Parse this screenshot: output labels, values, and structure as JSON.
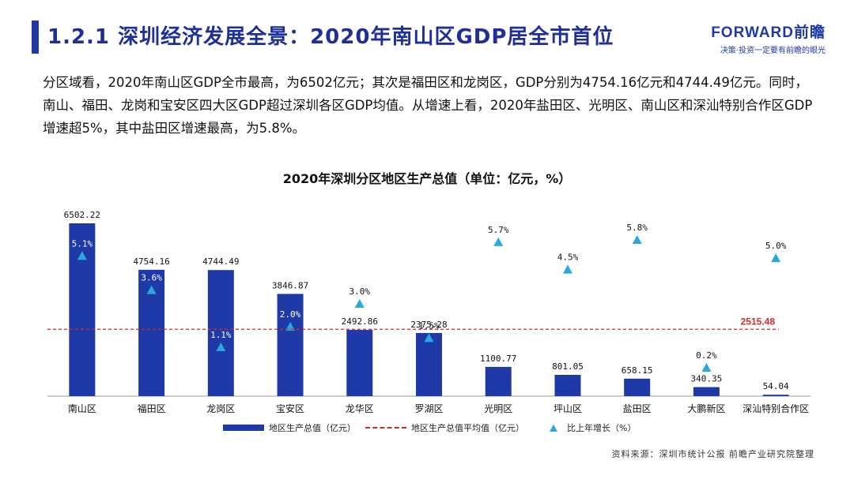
{
  "header": {
    "title": "1.2.1 深圳经济发展全景：2020年南山区GDP居全市首位",
    "logo_main": "FORWARD前瞻",
    "logo_sub": "决策·投资一定要有前瞻的眼光"
  },
  "paragraph": "分区域看，2020年南山区GDP全市最高，为6502亿元；其次是福田区和龙岗区，GDP分别为4754.16亿元和4744.49亿元。同时，南山、福田、龙岗和宝安区四大区GDP超过深圳各区GDP均值。从增速上看，2020年盐田区、光明区、南山区和深汕特别合作区GDP增速超5%，其中盐田区增速最高，为5.8%。",
  "chart_data": {
    "type": "bar",
    "title": "2020年深圳分区地区生产总值（单位：亿元，%）",
    "categories": [
      "南山区",
      "福田区",
      "龙岗区",
      "宝安区",
      "龙华区",
      "罗湖区",
      "光明区",
      "坪山区",
      "盐田区",
      "大鹏新区",
      "深汕特别合作区"
    ],
    "series": [
      {
        "name": "地区生产总值（亿元）",
        "type": "bar",
        "color": "#1f3aa6",
        "values": [
          6502.22,
          4754.16,
          4744.49,
          3846.87,
          2492.86,
          2375.28,
          1100.77,
          801.05,
          658.15,
          340.35,
          54.04
        ],
        "labels": [
          "6502.22",
          "4754.16",
          "4744.49",
          "3846.87",
          "2492.86",
          "2375.28",
          "1100.77",
          "801.05",
          "658.15",
          "340.35",
          "54.04"
        ]
      },
      {
        "name": "地区生产总值平均值（亿元）",
        "type": "line",
        "color": "#d42a2a",
        "value": 2515.48,
        "label": "2515.48"
      },
      {
        "name": "比上年增长（%）",
        "type": "scatter",
        "color": "#29a8e0",
        "values": [
          5.1,
          3.6,
          1.1,
          2.0,
          3.0,
          1.5,
          5.7,
          4.5,
          5.8,
          0.2,
          5.0
        ],
        "labels": [
          "5.1%",
          "3.6%",
          "1.1%",
          "2.0%",
          "3.0%",
          "1.5%",
          "5.7%",
          "4.5%",
          "5.8%",
          "0.2%",
          "5.0%"
        ]
      }
    ],
    "ylim_primary": [
      0,
      7000
    ],
    "ylim_secondary": [
      -1,
      6
    ],
    "legend_position": "bottom",
    "grid": false
  },
  "legend": {
    "bar": "地区生产总值（亿元）",
    "line": "地区生产总值平均值（亿元）",
    "marker": "比上年增长（%）"
  },
  "source": "资料来源：深圳市统计公报 前瞻产业研究院整理"
}
